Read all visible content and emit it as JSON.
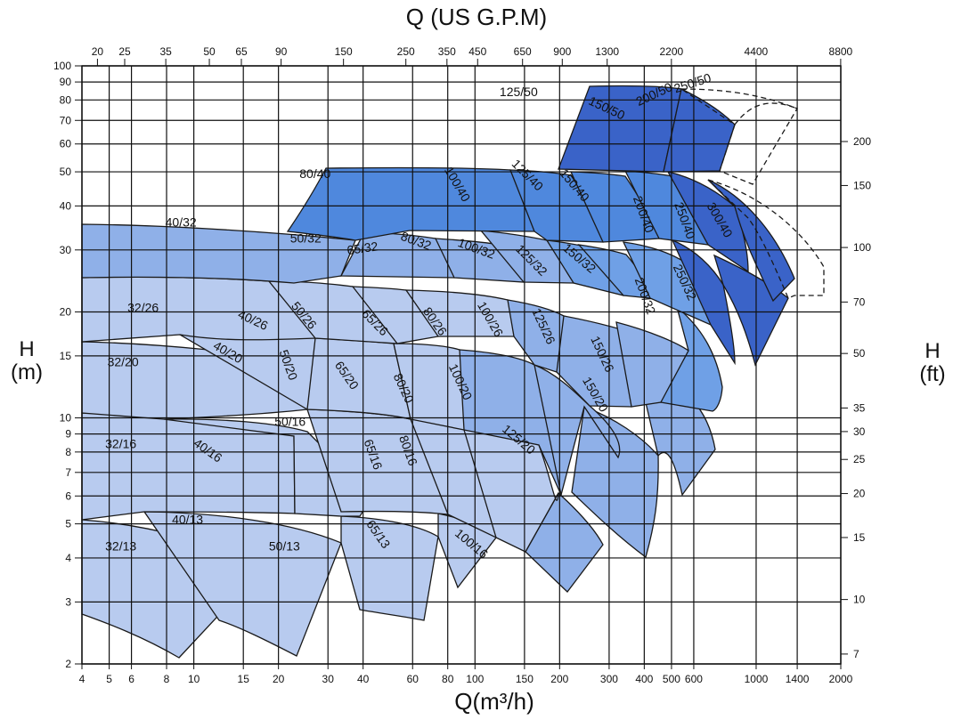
{
  "chart_data": {
    "type": "area",
    "title_top": "Q (US G.P.M)",
    "xlabel": "Q(m³/h)",
    "ylabel_left": "H",
    "ylabel_left_unit": "(m)",
    "ylabel_right": "H",
    "ylabel_right_unit": "(ft)",
    "x_scale": "log",
    "y_scale": "log",
    "xlim": [
      4,
      2000
    ],
    "ylim": [
      2,
      100
    ],
    "x_ticks": [
      "4",
      "5",
      "6",
      "8",
      "10",
      "15",
      "20",
      "30",
      "40",
      "60",
      "80",
      "100",
      "150",
      "200",
      "300",
      "400",
      "500",
      "600",
      "1000",
      "1400",
      "2000"
    ],
    "y_ticks": [
      "2",
      "3",
      "4",
      "5",
      "6",
      "7",
      "8",
      "9",
      "10",
      "15",
      "20",
      "30",
      "40",
      "50",
      "60",
      "70",
      "80",
      "90",
      "100"
    ],
    "top_ticks": [
      "20",
      "25",
      "35",
      "50",
      "65",
      "90",
      "150",
      "250",
      "350",
      "450",
      "650",
      "900",
      "1300",
      "2200",
      "4400",
      "8800"
    ],
    "right_ticks": [
      "7",
      "10",
      "15",
      "20",
      "25",
      "30",
      "35",
      "50",
      "70",
      "100",
      "150",
      "200"
    ],
    "colors": {
      "light": "#b8cbef",
      "mid": "#8fb0e8",
      "blue": "#6fa0e6",
      "strong": "#4f88dd",
      "dark": "#3a63c8",
      "outline": "#1a1a1a",
      "grid": "#111111"
    },
    "regions": [
      {
        "label": "32/13",
        "q": 5.5,
        "h": 4.2
      },
      {
        "label": "40/13",
        "q": 9.5,
        "h": 5.0
      },
      {
        "label": "50/13",
        "q": 21,
        "h": 4.2
      },
      {
        "label": "65/13",
        "q": 44,
        "h": 4.6
      },
      {
        "label": "100/16",
        "q": 95,
        "h": 4.3
      },
      {
        "label": "32/16",
        "q": 5.5,
        "h": 8.2
      },
      {
        "label": "40/16",
        "q": 11,
        "h": 7.9
      },
      {
        "label": "50/16",
        "q": 22,
        "h": 9.5
      },
      {
        "label": "65/16",
        "q": 42,
        "h": 7.8
      },
      {
        "label": "80/16",
        "q": 56,
        "h": 8.0
      },
      {
        "label": "125/20",
        "q": 140,
        "h": 8.5
      },
      {
        "label": "150/20",
        "q": 260,
        "h": 11.5
      },
      {
        "label": "32/20",
        "q": 5.6,
        "h": 14.0
      },
      {
        "label": "40/20",
        "q": 13,
        "h": 15.0
      },
      {
        "label": "50/20",
        "q": 21,
        "h": 14.0
      },
      {
        "label": "65/20",
        "q": 34,
        "h": 13.0
      },
      {
        "label": "80/20",
        "q": 54,
        "h": 12.0
      },
      {
        "label": "100/20",
        "q": 86,
        "h": 12.5
      },
      {
        "label": "32/26",
        "q": 6.6,
        "h": 20.0
      },
      {
        "label": "40/26",
        "q": 16,
        "h": 18.5
      },
      {
        "label": "50/26",
        "q": 24,
        "h": 19.2
      },
      {
        "label": "65/26",
        "q": 43,
        "h": 18.3
      },
      {
        "label": "80/26",
        "q": 70,
        "h": 18.5
      },
      {
        "label": "100/26",
        "q": 110,
        "h": 18.8
      },
      {
        "label": "125/26",
        "q": 170,
        "h": 18.0
      },
      {
        "label": "150/26",
        "q": 275,
        "h": 15.0
      },
      {
        "label": "40/32",
        "q": 9,
        "h": 35.0
      },
      {
        "label": "50/32",
        "q": 25,
        "h": 31.5
      },
      {
        "label": "65/32",
        "q": 40,
        "h": 29.5
      },
      {
        "label": "80/32",
        "q": 61,
        "h": 31.0
      },
      {
        "label": "100/32",
        "q": 100,
        "h": 29.5
      },
      {
        "label": "125/32",
        "q": 155,
        "h": 27.5
      },
      {
        "label": "150/32",
        "q": 230,
        "h": 27.8
      },
      {
        "label": "200/32",
        "q": 390,
        "h": 22.0
      },
      {
        "label": "250/32",
        "q": 540,
        "h": 24.0
      },
      {
        "label": "80/40",
        "q": 27,
        "h": 48.0
      },
      {
        "label": "100/40",
        "q": 84,
        "h": 45.5
      },
      {
        "label": "125/40",
        "q": 150,
        "h": 48.0
      },
      {
        "label": "150/40",
        "q": 220,
        "h": 45.0
      },
      {
        "label": "200/40",
        "q": 385,
        "h": 37.5
      },
      {
        "label": "250/40",
        "q": 540,
        "h": 36.0
      },
      {
        "label": "300/40",
        "q": 720,
        "h": 36.0
      },
      {
        "label": "125/50",
        "q": 143,
        "h": 82.0
      },
      {
        "label": "150/50",
        "q": 290,
        "h": 74.0
      },
      {
        "label": "200/50",
        "q": 440,
        "h": 81.0
      },
      {
        "label": "250/50",
        "q": 600,
        "h": 87.0
      }
    ]
  }
}
